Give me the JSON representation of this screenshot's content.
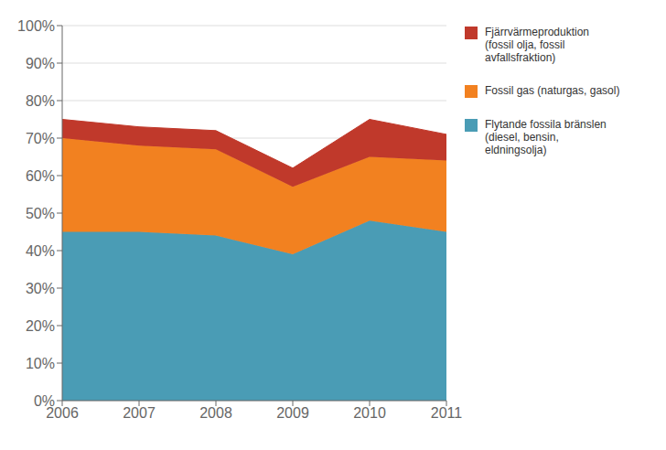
{
  "chart_data": {
    "type": "area",
    "stacked": true,
    "grid": true,
    "legend": "right",
    "x": [
      2006,
      2007,
      2008,
      2009,
      2010,
      2011
    ],
    "xlim": [
      2006,
      2011
    ],
    "xticks": [
      2006,
      2007,
      2008,
      2009,
      2010,
      2011
    ],
    "ylim": [
      0,
      100
    ],
    "yticks": [
      {
        "value": 0,
        "label": "0%"
      },
      {
        "value": 10,
        "label": "10%"
      },
      {
        "value": 20,
        "label": "20%"
      },
      {
        "value": 30,
        "label": "30%"
      },
      {
        "value": 40,
        "label": "40%"
      },
      {
        "value": 50,
        "label": "50%"
      },
      {
        "value": 60,
        "label": "60%"
      },
      {
        "value": 70,
        "label": "70%"
      },
      {
        "value": 80,
        "label": "80%"
      },
      {
        "value": 90,
        "label": "90%"
      },
      {
        "value": 100,
        "label": "100%"
      }
    ],
    "series": [
      {
        "name": "Flytande fossila bränslen\n(diesel, bensin,\neldningsolja)",
        "color": "#4a9cb5",
        "values": [
          45,
          45,
          44,
          39,
          48,
          45
        ]
      },
      {
        "name": "Fossil gas (naturgas, gasol)",
        "color": "#f28120",
        "values": [
          25,
          23,
          23,
          18,
          17,
          19
        ]
      },
      {
        "name": "Fjärrvärmeproduktion\n(fossil olja, fossil\navfallsfraktion)",
        "color": "#c0392b",
        "values": [
          5,
          5,
          5,
          5,
          10,
          7
        ]
      }
    ]
  }
}
